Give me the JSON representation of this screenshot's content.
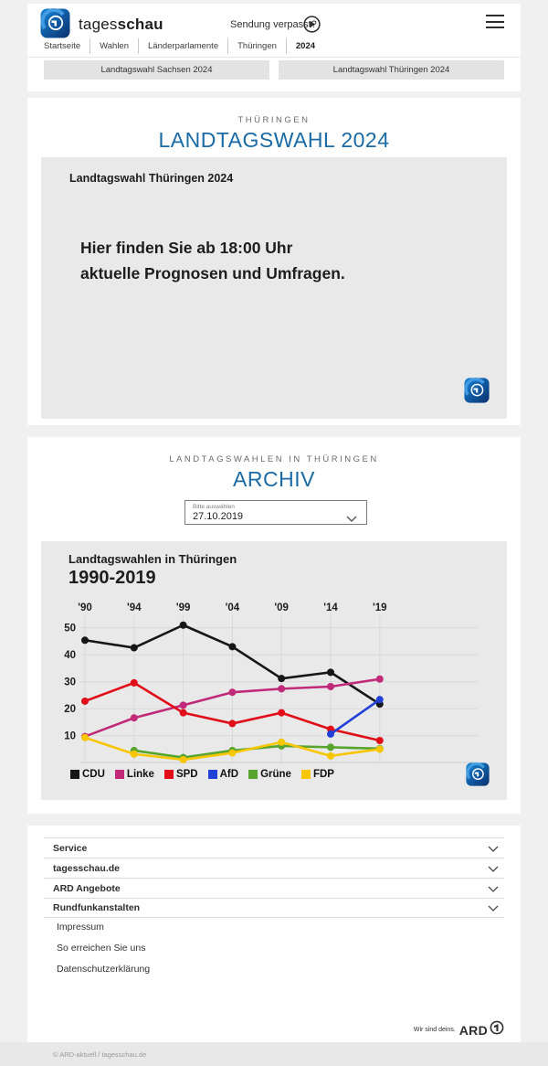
{
  "header": {
    "brand_regular": "tages",
    "brand_bold": "schau",
    "sendung_verpasst": "Sendung verpasst?",
    "breadcrumb": [
      "Startseite",
      "Wahlen",
      "Länderparlamente",
      "Thüringen",
      "2024"
    ],
    "quick_links": [
      "Landtagswahl Sachsen 2024",
      "Landtagswahl Thüringen 2024"
    ]
  },
  "main": {
    "kicker": "THÜRINGEN",
    "title": "LANDTAGSWAHL 2024",
    "teaser": {
      "heading": "Landtagswahl Thüringen 2024",
      "line1": "Hier finden Sie ab 18:00 Uhr",
      "line2": "aktuelle Prognosen und Umfragen."
    }
  },
  "archive": {
    "kicker": "LANDTAGSWAHLEN IN THÜRINGEN",
    "title": "ARCHIV",
    "select": {
      "label": "Bitte auswählen",
      "value": "27.10.2019"
    }
  },
  "chart_data": {
    "type": "line",
    "title": "Landtagswahlen in Thüringen",
    "subtitle": "1990-2019",
    "x": [
      1990,
      1994,
      1999,
      2004,
      2009,
      2014,
      2019
    ],
    "x_tick_labels": [
      "'90",
      "'94",
      "'99",
      "'04",
      "'09",
      "'14",
      "'19"
    ],
    "y_ticks": [
      10,
      20,
      30,
      40,
      50
    ],
    "ylim": [
      0,
      55
    ],
    "unit": "percent of vote",
    "grid": true,
    "legend_position": "bottom",
    "series": [
      {
        "name": "CDU",
        "color": "#161518",
        "values": [
          45.4,
          42.6,
          51.0,
          43.0,
          31.2,
          33.5,
          21.7
        ]
      },
      {
        "name": "Linke",
        "color": "#c02a78",
        "values": [
          9.7,
          16.6,
          21.3,
          26.1,
          27.4,
          28.2,
          31.0
        ]
      },
      {
        "name": "SPD",
        "color": "#e10e1a",
        "values": [
          22.8,
          29.6,
          18.5,
          14.5,
          18.5,
          12.4,
          8.2
        ]
      },
      {
        "name": "AfD",
        "color": "#2040d8",
        "values": [
          null,
          null,
          null,
          null,
          null,
          10.6,
          23.4
        ]
      },
      {
        "name": "Grüne",
        "color": "#57a52f",
        "values": [
          null,
          4.5,
          1.9,
          4.5,
          6.2,
          5.7,
          5.2
        ]
      },
      {
        "name": "FDP",
        "color": "#f7c600",
        "values": [
          9.3,
          3.2,
          1.1,
          3.6,
          7.6,
          2.5,
          5.0
        ]
      }
    ]
  },
  "footer": {
    "accordions": [
      "Service",
      "tagesschau.de",
      "ARD Angebote",
      "Rundfunkanstalten"
    ],
    "links": [
      "Impressum",
      "So erreichen Sie uns",
      "Datenschutzerklärung"
    ],
    "brand_claim": "Wir sind deins.",
    "brand_name": "ARD",
    "copyright": "© ARD-aktuell / tagesschau.de"
  },
  "colors": {
    "accent_blue": "#1a6aa5",
    "page_bg": "#f0f0f0",
    "panel_gray": "#e9e9e9"
  }
}
